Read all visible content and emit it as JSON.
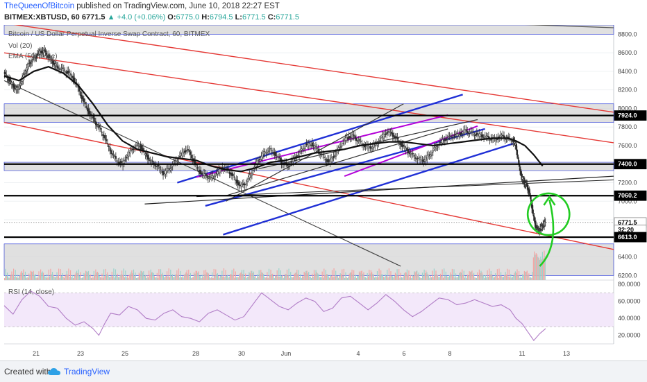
{
  "header": {
    "author": "TheQueenOfBitcoin",
    "published": "published on TradingView.com, June 10, 2018 22:27 EST",
    "symbol": "BITMEX:XBTUSD, 60",
    "last": "6771.5",
    "change": "▲ +4.0 (+0.06%)",
    "o_label": "O:",
    "o_value": "6775.0",
    "h_label": "H:",
    "h_value": "6794.5",
    "l_label": "L:",
    "l_value": "6771.5",
    "c_label": "C:",
    "c_value": "6771.5"
  },
  "panel": {
    "title": "Bitcoin / US Dollar Perpetual Inverse Swap Contract, 60, BITMEX",
    "vol_label": "Vol (20)",
    "ema_label": "EMA (50, close)",
    "rsi_label": "RSI (14, close)"
  },
  "footer": {
    "created": "Created with",
    "brand": "TradingView"
  },
  "colors": {
    "up": "#26a69a",
    "down": "#ef5350",
    "trend_red": "#e53935",
    "channel_blue": "#1f2fd6",
    "channel_purple": "#b400d8",
    "annotation_green": "#22cc22",
    "rsi_line": "#b07cc6",
    "rsi_band": "#f3e8fa"
  },
  "chart_data": {
    "type": "candlestick",
    "price_axis": {
      "ticks": [
        "8800.0",
        "8600.0",
        "8400.0",
        "8200.0",
        "8000.0",
        "7800.0",
        "7600.0",
        "7400.0",
        "7200.0",
        "7000.0",
        "6800.0",
        "6600.0",
        "6400.0",
        "6200.0"
      ],
      "range": [
        6150,
        8900
      ]
    },
    "x_axis": {
      "ticks": [
        "21",
        "23",
        "25",
        "28",
        "30",
        "Jun",
        "4",
        "6",
        "8",
        "11",
        "13"
      ]
    },
    "price_tags": [
      {
        "label": "7924.0",
        "value": 7924,
        "style": "dark"
      },
      {
        "label": "7400.0",
        "value": 7400,
        "style": "dark"
      },
      {
        "label": "7060.2",
        "value": 7060,
        "style": "dark"
      },
      {
        "label": "6771.5",
        "value": 6771,
        "style": "light"
      },
      {
        "label": "32:20",
        "value": 6690,
        "style": "light"
      },
      {
        "label": "6613.0",
        "value": 6613,
        "style": "dark"
      }
    ],
    "horizontal_levels": [
      7924,
      7400,
      7060,
      6613
    ],
    "shaded_zones": [
      [
        8800,
        8900
      ],
      [
        7850,
        8050
      ],
      [
        7330,
        7420
      ],
      [
        6200,
        6540
      ]
    ],
    "rsi_axis": {
      "ticks": [
        "80.0000",
        "60.0000",
        "40.0000",
        "20.0000"
      ],
      "range": [
        10,
        85
      ],
      "overbought": 70,
      "oversold": 30
    },
    "price_path": [
      [
        0,
        8380
      ],
      [
        3,
        8320
      ],
      [
        6,
        8250
      ],
      [
        9,
        8200
      ],
      [
        12,
        8300
      ],
      [
        15,
        8420
      ],
      [
        18,
        8500
      ],
      [
        21,
        8550
      ],
      [
        24,
        8600
      ],
      [
        27,
        8620
      ],
      [
        30,
        8560
      ],
      [
        33,
        8500
      ],
      [
        36,
        8450
      ],
      [
        40,
        8420
      ],
      [
        44,
        8380
      ],
      [
        48,
        8300
      ],
      [
        52,
        8150
      ],
      [
        56,
        8000
      ],
      [
        60,
        7900
      ],
      [
        64,
        7800
      ],
      [
        68,
        7700
      ],
      [
        72,
        7550
      ],
      [
        76,
        7450
      ],
      [
        80,
        7400
      ],
      [
        84,
        7500
      ],
      [
        88,
        7580
      ],
      [
        92,
        7600
      ],
      [
        96,
        7500
      ],
      [
        100,
        7420
      ],
      [
        104,
        7380
      ],
      [
        108,
        7300
      ],
      [
        112,
        7350
      ],
      [
        116,
        7420
      ],
      [
        120,
        7500
      ],
      [
        124,
        7560
      ],
      [
        128,
        7450
      ],
      [
        132,
        7320
      ],
      [
        136,
        7280
      ],
      [
        140,
        7250
      ],
      [
        144,
        7300
      ],
      [
        148,
        7360
      ],
      [
        152,
        7330
      ],
      [
        156,
        7240
      ],
      [
        160,
        7160
      ],
      [
        164,
        7200
      ],
      [
        168,
        7320
      ],
      [
        172,
        7440
      ],
      [
        176,
        7520
      ],
      [
        180,
        7560
      ],
      [
        184,
        7500
      ],
      [
        188,
        7420
      ],
      [
        192,
        7380
      ],
      [
        196,
        7450
      ],
      [
        200,
        7520
      ],
      [
        204,
        7600
      ],
      [
        208,
        7620
      ],
      [
        212,
        7560
      ],
      [
        216,
        7480
      ],
      [
        220,
        7420
      ],
      [
        224,
        7500
      ],
      [
        228,
        7600
      ],
      [
        232,
        7680
      ],
      [
        236,
        7700
      ],
      [
        240,
        7650
      ],
      [
        244,
        7600
      ],
      [
        248,
        7580
      ],
      [
        252,
        7620
      ],
      [
        256,
        7700
      ],
      [
        260,
        7750
      ],
      [
        264,
        7700
      ],
      [
        268,
        7620
      ],
      [
        272,
        7560
      ],
      [
        276,
        7500
      ],
      [
        280,
        7460
      ],
      [
        284,
        7440
      ],
      [
        288,
        7500
      ],
      [
        292,
        7580
      ],
      [
        296,
        7640
      ],
      [
        300,
        7680
      ],
      [
        304,
        7700
      ],
      [
        308,
        7720
      ],
      [
        312,
        7760
      ],
      [
        316,
        7740
      ],
      [
        320,
        7720
      ],
      [
        324,
        7700
      ],
      [
        328,
        7680
      ],
      [
        332,
        7660
      ],
      [
        336,
        7700
      ],
      [
        340,
        7680
      ],
      [
        344,
        7660
      ],
      [
        346,
        7600
      ],
      [
        348,
        7400
      ],
      [
        350,
        7250
      ],
      [
        352,
        7200
      ],
      [
        354,
        7150
      ],
      [
        356,
        7020
      ],
      [
        358,
        6820
      ],
      [
        360,
        6700
      ],
      [
        362,
        6690
      ],
      [
        364,
        6740
      ],
      [
        366,
        6771
      ]
    ],
    "ema_path": [
      [
        0,
        8350
      ],
      [
        10,
        8300
      ],
      [
        20,
        8400
      ],
      [
        30,
        8450
      ],
      [
        40,
        8380
      ],
      [
        50,
        8250
      ],
      [
        60,
        8050
      ],
      [
        70,
        7820
      ],
      [
        80,
        7650
      ],
      [
        90,
        7560
      ],
      [
        100,
        7520
      ],
      [
        110,
        7480
      ],
      [
        120,
        7460
      ],
      [
        130,
        7440
      ],
      [
        140,
        7380
      ],
      [
        150,
        7340
      ],
      [
        160,
        7320
      ],
      [
        170,
        7360
      ],
      [
        180,
        7420
      ],
      [
        190,
        7440
      ],
      [
        200,
        7480
      ],
      [
        210,
        7520
      ],
      [
        220,
        7540
      ],
      [
        230,
        7560
      ],
      [
        240,
        7600
      ],
      [
        250,
        7620
      ],
      [
        260,
        7640
      ],
      [
        270,
        7640
      ],
      [
        280,
        7620
      ],
      [
        290,
        7600
      ],
      [
        300,
        7620
      ],
      [
        310,
        7640
      ],
      [
        320,
        7660
      ],
      [
        330,
        7680
      ],
      [
        340,
        7680
      ],
      [
        346,
        7650
      ],
      [
        352,
        7600
      ],
      [
        358,
        7500
      ],
      [
        364,
        7380
      ]
    ],
    "rsi_path": [
      [
        0,
        55
      ],
      [
        6,
        45
      ],
      [
        12,
        62
      ],
      [
        18,
        72
      ],
      [
        24,
        66
      ],
      [
        30,
        54
      ],
      [
        36,
        52
      ],
      [
        42,
        40
      ],
      [
        48,
        32
      ],
      [
        54,
        36
      ],
      [
        60,
        28
      ],
      [
        64,
        20
      ],
      [
        68,
        34
      ],
      [
        72,
        46
      ],
      [
        78,
        44
      ],
      [
        84,
        54
      ],
      [
        90,
        50
      ],
      [
        96,
        40
      ],
      [
        102,
        38
      ],
      [
        108,
        46
      ],
      [
        114,
        50
      ],
      [
        120,
        42
      ],
      [
        126,
        40
      ],
      [
        132,
        36
      ],
      [
        138,
        46
      ],
      [
        144,
        50
      ],
      [
        150,
        44
      ],
      [
        156,
        38
      ],
      [
        162,
        42
      ],
      [
        168,
        56
      ],
      [
        174,
        70
      ],
      [
        180,
        62
      ],
      [
        186,
        54
      ],
      [
        192,
        50
      ],
      [
        198,
        58
      ],
      [
        204,
        64
      ],
      [
        210,
        60
      ],
      [
        216,
        48
      ],
      [
        222,
        52
      ],
      [
        228,
        64
      ],
      [
        234,
        66
      ],
      [
        240,
        58
      ],
      [
        246,
        50
      ],
      [
        252,
        58
      ],
      [
        258,
        68
      ],
      [
        264,
        60
      ],
      [
        270,
        50
      ],
      [
        276,
        42
      ],
      [
        282,
        48
      ],
      [
        288,
        56
      ],
      [
        294,
        64
      ],
      [
        300,
        62
      ],
      [
        306,
        56
      ],
      [
        312,
        58
      ],
      [
        318,
        62
      ],
      [
        324,
        58
      ],
      [
        330,
        54
      ],
      [
        336,
        56
      ],
      [
        342,
        50
      ],
      [
        346,
        40
      ],
      [
        350,
        34
      ],
      [
        354,
        24
      ],
      [
        358,
        14
      ],
      [
        362,
        22
      ],
      [
        366,
        28
      ]
    ]
  }
}
